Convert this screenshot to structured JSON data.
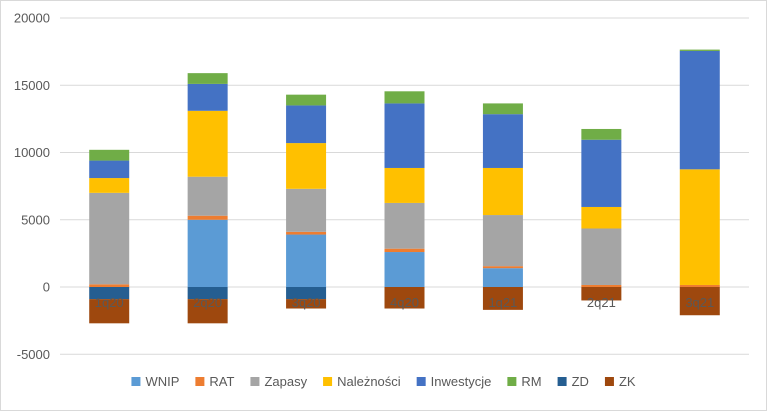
{
  "chart_data": {
    "type": "bar",
    "stacked": true,
    "categories": [
      "1q20",
      "2q20",
      "3q20",
      "4q20",
      "1q21",
      "2q21",
      "3q21"
    ],
    "ylim": [
      -5000,
      20000
    ],
    "yticks": [
      -5000,
      0,
      5000,
      10000,
      15000,
      20000
    ],
    "grid": true,
    "legend_position": "bottom",
    "series": [
      {
        "name": "WNIP",
        "color": "#5b9bd5",
        "values": [
          0,
          5000,
          3900,
          2600,
          1400,
          0,
          0
        ]
      },
      {
        "name": "RAT",
        "color": "#ed7d31",
        "values": [
          200,
          300,
          200,
          250,
          150,
          150,
          150
        ]
      },
      {
        "name": "Zapasy",
        "color": "#a5a5a5",
        "values": [
          6800,
          2900,
          3200,
          3400,
          3800,
          4200,
          0
        ]
      },
      {
        "name": "Należności",
        "color": "#ffc000",
        "values": [
          1100,
          4900,
          3400,
          2600,
          3500,
          1600,
          8600
        ]
      },
      {
        "name": "Inwestycje",
        "color": "#4472c4",
        "values": [
          1300,
          2000,
          2800,
          4800,
          4000,
          5000,
          8800
        ]
      },
      {
        "name": "RM",
        "color": "#70ad47",
        "values": [
          800,
          800,
          800,
          900,
          800,
          800,
          100
        ]
      },
      {
        "name": "ZD",
        "color": "#255e91",
        "values": [
          -900,
          -900,
          -900,
          0,
          0,
          0,
          0
        ]
      },
      {
        "name": "ZK",
        "color": "#9e480e",
        "values": [
          -1800,
          -1800,
          -700,
          -1600,
          -1700,
          -1000,
          -2100
        ]
      }
    ]
  }
}
